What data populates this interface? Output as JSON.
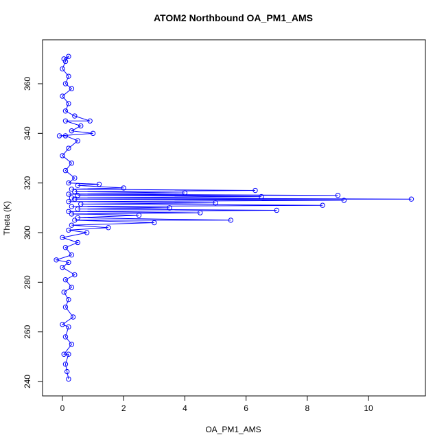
{
  "chart_data": {
    "type": "line",
    "title": "ATOM2 Northbound OA_PM1_AMS",
    "x_label": "OA_PM1_AMS",
    "y_label": "Theta (K)",
    "color": "#0000ff",
    "markers": true,
    "x": [
      0.2,
      0.15,
      0.1,
      0.2,
      0.05,
      0.3,
      0.1,
      0.2,
      0.0,
      0.35,
      0.1,
      0.2,
      0.05,
      0.3,
      0.1,
      0.4,
      0.0,
      0.2,
      -0.2,
      0.3,
      0.1,
      0.5,
      0.0,
      0.8,
      0.2,
      1.5,
      0.3,
      3.0,
      0.4,
      5.5,
      0.5,
      2.5,
      0.3,
      4.5,
      0.2,
      7.0,
      0.5,
      3.5,
      0.3,
      8.5,
      0.6,
      5.0,
      0.2,
      9.2,
      0.4,
      11.4,
      0.3,
      6.5,
      0.5,
      9.0,
      0.2,
      4.0,
      0.4,
      6.3,
      0.3,
      2.0,
      0.5,
      1.2,
      0.2,
      0.4,
      0.1,
      0.3,
      0.0,
      0.2,
      0.5,
      0.1,
      -0.1,
      1.0,
      0.3,
      0.6,
      0.1,
      0.9,
      0.4,
      0.1,
      0.2,
      0.0,
      0.3,
      0.1,
      0.2,
      0.0,
      0.1,
      0.2,
      0.05
    ],
    "values": [
      241,
      244,
      247,
      251,
      251,
      255,
      258,
      262,
      263,
      266,
      270,
      273,
      276,
      278,
      281,
      283,
      286,
      288,
      289,
      291,
      294,
      296,
      298,
      300,
      301,
      302,
      303,
      304,
      305,
      305,
      306,
      307,
      307.5,
      308,
      308.5,
      309,
      309.5,
      310,
      310.5,
      311,
      311.5,
      312,
      312.5,
      313,
      313.5,
      313.5,
      314,
      314.5,
      315,
      315,
      315.5,
      316,
      316.5,
      317,
      317.5,
      318,
      319,
      319.5,
      320,
      322,
      325,
      328,
      331,
      334,
      337,
      339,
      339,
      340,
      341,
      343,
      345,
      345,
      347,
      349,
      352,
      355,
      358,
      360,
      363,
      366,
      369,
      371,
      370
    ],
    "xlim": [
      -0.65,
      11.86
    ],
    "ylim": [
      234.2,
      377.7
    ],
    "xticks": [
      0,
      2,
      4,
      6,
      8,
      10
    ],
    "yticks": [
      240,
      260,
      280,
      300,
      320,
      340,
      360
    ]
  }
}
